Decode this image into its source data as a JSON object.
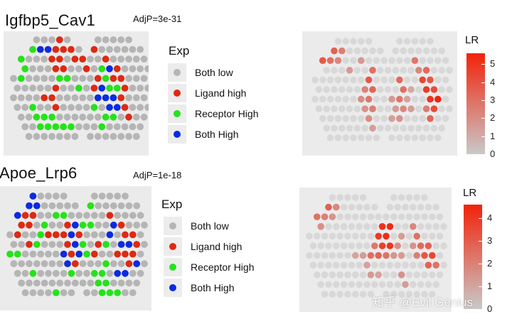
{
  "colors": {
    "both_low": "#b5b5b5",
    "ligand_high": "#dd2a12",
    "receptor_high": "#26e21b",
    "both_high": "#0a2be0",
    "lr_low": "#c9c9c9",
    "lr_high": "#f2220a",
    "panel_bg": "#ebebeb"
  },
  "watermark": "知乎 @Evil Genius",
  "charts": [
    {
      "id": "top",
      "title": "Igfbp5_Cav1",
      "adjp": "AdjP=3e-31",
      "legend": {
        "title": "Exp",
        "items": [
          {
            "label": "Both low",
            "key": "both_low"
          },
          {
            "label": "Ligand high",
            "key": "ligand_high"
          },
          {
            "label": "Receptor High",
            "key": "receptor_high"
          },
          {
            "label": "Both High",
            "key": "both_high"
          }
        ]
      },
      "lr_scale": {
        "title": "LR",
        "ticks": [
          "5",
          "4",
          "3",
          "2",
          "1",
          "0"
        ],
        "max": 5.6
      }
    },
    {
      "id": "bottom",
      "title": "Apoe_Lrp6",
      "adjp": "AdjP=1e-18",
      "legend": {
        "title": "Exp",
        "items": [
          {
            "label": "Both low",
            "key": "both_low"
          },
          {
            "label": "Ligand high",
            "key": "ligand_high"
          },
          {
            "label": "Receptor High",
            "key": "receptor_high"
          },
          {
            "label": "Both High",
            "key": "both_high"
          }
        ]
      },
      "lr_scale": {
        "title": "LR",
        "ticks": [
          "4",
          "3",
          "2",
          "1",
          "0"
        ],
        "max": 4.6
      }
    }
  ],
  "chart_data": [
    {
      "type": "scatter",
      "title": "Igfbp5_Cav1",
      "subtitle": "AdjP=3e-31",
      "legend_title": "Exp",
      "categories": [
        "Both low",
        "Ligand high",
        "Receptor High",
        "Both High"
      ],
      "ligand_high": [
        [
          6,
          0
        ],
        [
          5,
          1
        ],
        [
          6,
          1
        ],
        [
          5,
          2
        ],
        [
          6,
          2
        ],
        [
          5,
          3
        ],
        [
          6,
          3
        ],
        [
          10,
          1
        ],
        [
          7,
          1
        ],
        [
          8,
          2
        ],
        [
          9,
          2
        ],
        [
          9,
          3
        ],
        [
          5,
          5
        ],
        [
          4,
          6
        ],
        [
          5,
          6
        ],
        [
          5,
          7
        ],
        [
          12,
          2
        ],
        [
          13,
          3
        ],
        [
          13,
          4
        ],
        [
          14,
          4
        ],
        [
          14,
          5
        ],
        [
          14,
          6
        ],
        [
          14,
          7
        ],
        [
          15,
          8
        ],
        [
          10,
          5
        ],
        [
          11,
          4
        ]
      ],
      "receptor_high": [
        [
          2,
          1
        ],
        [
          1,
          2
        ],
        [
          1,
          3
        ],
        [
          1,
          4
        ],
        [
          2,
          7
        ],
        [
          3,
          8
        ],
        [
          3,
          9
        ],
        [
          4,
          9
        ],
        [
          4,
          8
        ],
        [
          5,
          8
        ],
        [
          5,
          9
        ],
        [
          6,
          9
        ],
        [
          7,
          9
        ],
        [
          10,
          7
        ],
        [
          11,
          9
        ],
        [
          12,
          8
        ],
        [
          13,
          8
        ],
        [
          11,
          3
        ],
        [
          12,
          4
        ],
        [
          13,
          5
        ],
        [
          12,
          5
        ],
        [
          8,
          5
        ],
        [
          6,
          4
        ],
        [
          7,
          4
        ]
      ],
      "both_high": [
        [
          1,
          0
        ],
        [
          2,
          0
        ],
        [
          3,
          1
        ],
        [
          0,
          3
        ],
        [
          1,
          1
        ],
        [
          4,
          1
        ],
        [
          12,
          3
        ],
        [
          13,
          6
        ],
        [
          12,
          6
        ],
        [
          12,
          7
        ],
        [
          11,
          5
        ],
        [
          11,
          6
        ],
        [
          13,
          7
        ]
      ],
      "lr_colorbar": {
        "title": "LR",
        "range": [
          0,
          5.6
        ],
        "ticks": [
          0,
          1,
          2,
          3,
          4,
          5
        ]
      },
      "lr_values": [
        [
          0,
          0,
          5.5
        ],
        [
          1,
          0,
          4.8
        ],
        [
          0,
          1,
          5.2
        ],
        [
          1,
          1,
          4.9
        ],
        [
          2,
          1,
          3.5
        ],
        [
          3,
          1,
          2.5
        ],
        [
          2,
          2,
          3.0
        ],
        [
          3,
          2,
          2.2
        ],
        [
          4,
          3,
          1.6
        ],
        [
          1,
          2,
          3.8
        ],
        [
          0,
          2,
          3.4
        ],
        [
          6,
          2,
          1.6
        ],
        [
          7,
          3,
          3.0
        ],
        [
          7,
          4,
          3.8
        ],
        [
          7,
          5,
          3.4
        ],
        [
          7,
          6,
          2.8
        ],
        [
          6,
          5,
          2.3
        ],
        [
          7,
          7,
          2.5
        ],
        [
          6,
          6,
          2.0
        ],
        [
          6,
          7,
          1.8
        ],
        [
          7,
          8,
          2.0
        ],
        [
          7,
          9,
          1.5
        ],
        [
          13,
          2,
          2.8
        ],
        [
          13,
          3,
          2.2
        ],
        [
          14,
          3,
          3.2
        ],
        [
          14,
          4,
          4.4
        ],
        [
          15,
          4,
          3.8
        ],
        [
          14,
          5,
          4.8
        ],
        [
          15,
          5,
          4.2
        ],
        [
          15,
          6,
          5.0
        ],
        [
          16,
          6,
          5.6
        ],
        [
          15,
          7,
          4.2
        ],
        [
          15,
          8,
          3.4
        ],
        [
          14,
          7,
          2.5
        ],
        [
          11,
          4,
          3.2
        ],
        [
          11,
          5,
          3.0
        ],
        [
          11,
          6,
          2.8
        ],
        [
          11,
          7,
          2.2
        ],
        [
          11,
          8,
          1.8
        ],
        [
          12,
          6,
          1.2
        ],
        [
          12,
          5,
          1.0
        ],
        [
          12,
          7,
          1.4
        ],
        [
          10,
          6,
          1.6
        ],
        [
          10,
          7,
          1.5
        ],
        [
          10,
          8,
          1.4
        ]
      ]
    },
    {
      "type": "scatter",
      "title": "Apoe_Lrp6",
      "subtitle": "AdjP=1e-18",
      "legend_title": "Exp",
      "categories": [
        "Both low",
        "Ligand high",
        "Receptor High",
        "Both High"
      ],
      "ligand_high": [
        [
          1,
          1
        ],
        [
          2,
          2
        ],
        [
          3,
          2
        ],
        [
          1,
          3
        ],
        [
          2,
          3
        ],
        [
          1,
          4
        ],
        [
          2,
          5
        ],
        [
          5,
          4
        ],
        [
          6,
          4
        ],
        [
          7,
          3
        ],
        [
          7,
          4
        ],
        [
          7,
          5
        ],
        [
          8,
          6
        ],
        [
          8,
          7
        ],
        [
          9,
          4
        ],
        [
          11,
          5
        ],
        [
          11,
          6
        ],
        [
          13,
          2
        ],
        [
          14,
          3
        ],
        [
          15,
          4
        ],
        [
          16,
          4
        ],
        [
          16,
          5
        ],
        [
          15,
          6
        ],
        [
          16,
          6
        ],
        [
          14,
          6
        ],
        [
          15,
          7
        ]
      ],
      "receptor_high": [
        [
          0,
          3
        ],
        [
          0,
          6
        ],
        [
          1,
          6
        ],
        [
          3,
          5
        ],
        [
          4,
          4
        ],
        [
          6,
          2
        ],
        [
          7,
          2
        ],
        [
          9,
          1
        ],
        [
          10,
          1
        ],
        [
          9,
          3
        ],
        [
          9,
          5
        ],
        [
          10,
          3
        ],
        [
          10,
          6
        ],
        [
          8,
          8
        ],
        [
          11,
          8
        ],
        [
          12,
          7
        ],
        [
          12,
          5
        ],
        [
          11,
          9
        ],
        [
          12,
          9
        ],
        [
          12,
          10
        ],
        [
          13,
          10
        ],
        [
          14,
          10
        ],
        [
          6,
          10
        ],
        [
          12,
          8
        ],
        [
          3,
          8
        ],
        [
          4,
          3
        ]
      ],
      "both_high": [
        [
          2,
          0
        ],
        [
          3,
          0
        ],
        [
          1,
          1
        ],
        [
          2,
          1
        ],
        [
          3,
          1
        ],
        [
          0,
          2
        ],
        [
          1,
          2
        ],
        [
          8,
          3
        ],
        [
          8,
          4
        ],
        [
          8,
          5
        ],
        [
          7,
          6
        ],
        [
          7,
          7
        ],
        [
          9,
          6
        ],
        [
          13,
          3
        ],
        [
          13,
          4
        ],
        [
          14,
          5
        ],
        [
          15,
          5
        ],
        [
          16,
          7
        ],
        [
          14,
          8
        ],
        [
          15,
          8
        ]
      ],
      "lr_colorbar": {
        "title": "LR",
        "range": [
          0,
          4.6
        ],
        "ticks": [
          0,
          1,
          2,
          3,
          4
        ]
      },
      "lr_values": [
        [
          1,
          0,
          2.8
        ],
        [
          2,
          0,
          3.0
        ],
        [
          1,
          1,
          3.2
        ],
        [
          2,
          1,
          2.9
        ],
        [
          0,
          1,
          2.2
        ],
        [
          0,
          2,
          2.0
        ],
        [
          1,
          2,
          2.4
        ],
        [
          2,
          2,
          2.0
        ],
        [
          3,
          1,
          1.8
        ],
        [
          3,
          2,
          1.5
        ],
        [
          1,
          3,
          1.6
        ],
        [
          0,
          3,
          1.2
        ],
        [
          9,
          3,
          4.2
        ],
        [
          10,
          3,
          4.4
        ],
        [
          9,
          4,
          4.0
        ],
        [
          10,
          4,
          4.3
        ],
        [
          9,
          5,
          3.8
        ],
        [
          10,
          5,
          4.1
        ],
        [
          8,
          5,
          2.2
        ],
        [
          8,
          6,
          2.5
        ],
        [
          10,
          6,
          2.4
        ],
        [
          9,
          6,
          2.8
        ],
        [
          13,
          3,
          1.8
        ],
        [
          14,
          4,
          2.4
        ],
        [
          14,
          5,
          2.6
        ],
        [
          15,
          5,
          2.9
        ],
        [
          15,
          6,
          3.2
        ],
        [
          16,
          6,
          3.6
        ],
        [
          15,
          7,
          2.8
        ],
        [
          16,
          7,
          2.4
        ],
        [
          14,
          6,
          2.0
        ],
        [
          13,
          5,
          1.5
        ],
        [
          12,
          4,
          1.2
        ],
        [
          11,
          5,
          1.6
        ],
        [
          11,
          6,
          1.4
        ],
        [
          12,
          6,
          1.3
        ],
        [
          7,
          6,
          1.2
        ],
        [
          6,
          6,
          1.0
        ],
        [
          7,
          7,
          1.1
        ],
        [
          8,
          8,
          1.3
        ],
        [
          9,
          8,
          1.0
        ],
        [
          12,
          8,
          1.5
        ],
        [
          12,
          9,
          1.2
        ]
      ]
    }
  ]
}
